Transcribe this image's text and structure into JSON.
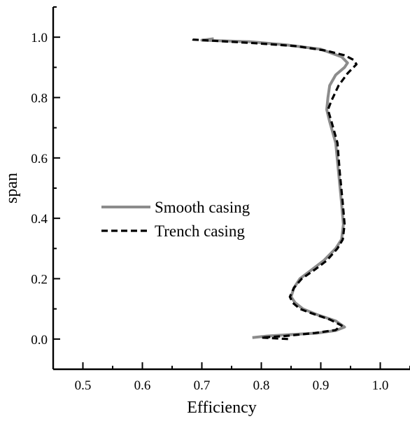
{
  "chart_data": {
    "type": "line",
    "title": "",
    "xlabel": "Efficiency",
    "ylabel": "span",
    "xlim": [
      0.45,
      1.05
    ],
    "ylim": [
      -0.1,
      1.1
    ],
    "xticks": [
      0.5,
      0.6,
      0.7,
      0.8,
      0.9,
      1.0
    ],
    "xtick_labels": [
      "0.5",
      "0.6",
      "0.7",
      "0.8",
      "0.9",
      "1.0"
    ],
    "yticks": [
      0.0,
      0.2,
      0.4,
      0.6,
      0.8,
      1.0
    ],
    "ytick_labels": [
      "0.0",
      "0.2",
      "0.4",
      "0.6",
      "0.8",
      "1.0"
    ],
    "grid": false,
    "legend_position": "center-left",
    "series": [
      {
        "name": "Smooth casing",
        "color": "#8c8c8c",
        "style": "solid",
        "points": [
          [
            0.785,
            0.005
          ],
          [
            0.81,
            0.01
          ],
          [
            0.85,
            0.015
          ],
          [
            0.895,
            0.02
          ],
          [
            0.925,
            0.028
          ],
          [
            0.94,
            0.04
          ],
          [
            0.925,
            0.06
          ],
          [
            0.895,
            0.08
          ],
          [
            0.87,
            0.1
          ],
          [
            0.857,
            0.12
          ],
          [
            0.85,
            0.14
          ],
          [
            0.855,
            0.17
          ],
          [
            0.865,
            0.2
          ],
          [
            0.885,
            0.23
          ],
          [
            0.905,
            0.26
          ],
          [
            0.925,
            0.3
          ],
          [
            0.935,
            0.33
          ],
          [
            0.938,
            0.38
          ],
          [
            0.935,
            0.45
          ],
          [
            0.93,
            0.55
          ],
          [
            0.925,
            0.65
          ],
          [
            0.915,
            0.72
          ],
          [
            0.91,
            0.76
          ],
          [
            0.912,
            0.8
          ],
          [
            0.915,
            0.84
          ],
          [
            0.925,
            0.875
          ],
          [
            0.94,
            0.9
          ],
          [
            0.945,
            0.915
          ],
          [
            0.935,
            0.935
          ],
          [
            0.9,
            0.96
          ],
          [
            0.84,
            0.975
          ],
          [
            0.78,
            0.985
          ],
          [
            0.7,
            0.99
          ],
          [
            0.72,
            0.995
          ]
        ]
      },
      {
        "name": "Trench casing",
        "color": "#000000",
        "style": "dashed",
        "points": [
          [
            0.845,
            0.0
          ],
          [
            0.8,
            0.005
          ],
          [
            0.84,
            0.01
          ],
          [
            0.89,
            0.02
          ],
          [
            0.925,
            0.03
          ],
          [
            0.935,
            0.045
          ],
          [
            0.915,
            0.065
          ],
          [
            0.885,
            0.085
          ],
          [
            0.865,
            0.1
          ],
          [
            0.853,
            0.12
          ],
          [
            0.848,
            0.14
          ],
          [
            0.855,
            0.17
          ],
          [
            0.868,
            0.2
          ],
          [
            0.89,
            0.23
          ],
          [
            0.91,
            0.26
          ],
          [
            0.928,
            0.3
          ],
          [
            0.937,
            0.33
          ],
          [
            0.94,
            0.38
          ],
          [
            0.937,
            0.45
          ],
          [
            0.932,
            0.55
          ],
          [
            0.928,
            0.65
          ],
          [
            0.918,
            0.72
          ],
          [
            0.912,
            0.76
          ],
          [
            0.918,
            0.79
          ],
          [
            0.93,
            0.84
          ],
          [
            0.945,
            0.88
          ],
          [
            0.955,
            0.9
          ],
          [
            0.96,
            0.91
          ],
          [
            0.955,
            0.925
          ],
          [
            0.94,
            0.94
          ],
          [
            0.91,
            0.955
          ],
          [
            0.86,
            0.97
          ],
          [
            0.79,
            0.98
          ],
          [
            0.72,
            0.988
          ],
          [
            0.685,
            0.992
          ],
          [
            0.68,
            0.997
          ]
        ]
      }
    ]
  }
}
